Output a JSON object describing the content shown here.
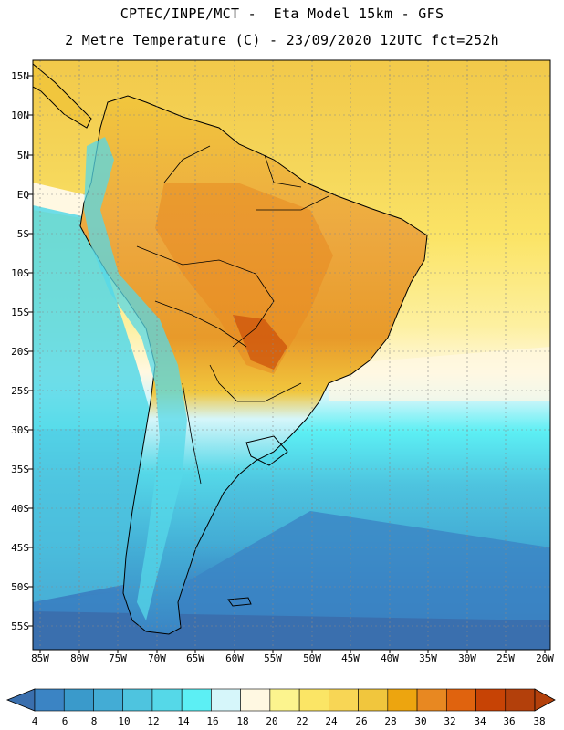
{
  "title": {
    "line1": "CPTEC/INPE/MCT -  Eta Model 15km - GFS",
    "line2": "2 Metre Temperature (C) - 23/09/2020 12UTC fct=252h"
  },
  "map": {
    "lat_labels": [
      "15N",
      "10N",
      "5N",
      "EQ",
      "5S",
      "10S",
      "15S",
      "20S",
      "25S",
      "30S",
      "35S",
      "40S",
      "45S",
      "50S",
      "55S"
    ],
    "lon_labels": [
      "85W",
      "80W",
      "75W",
      "70W",
      "65W",
      "60W",
      "55W",
      "50W",
      "45W",
      "40W",
      "35W",
      "30W",
      "25W",
      "20W"
    ]
  },
  "colorbar": {
    "labels": [
      "4",
      "6",
      "8",
      "10",
      "12",
      "14",
      "16",
      "18",
      "20",
      "22",
      "24",
      "26",
      "28",
      "30",
      "32",
      "34",
      "36",
      "38"
    ],
    "colors": [
      "#3a6fae",
      "#3b84c4",
      "#3a9acb",
      "#43acd5",
      "#4ec4df",
      "#55d8e8",
      "#5ceff4",
      "#d6f6fa",
      "#fff8e2",
      "#fcf48e",
      "#fbe565",
      "#f8d655",
      "#f1c63d",
      "#eda50f",
      "#e88821",
      "#e0630e",
      "#c74305",
      "#b3400b"
    ]
  }
}
